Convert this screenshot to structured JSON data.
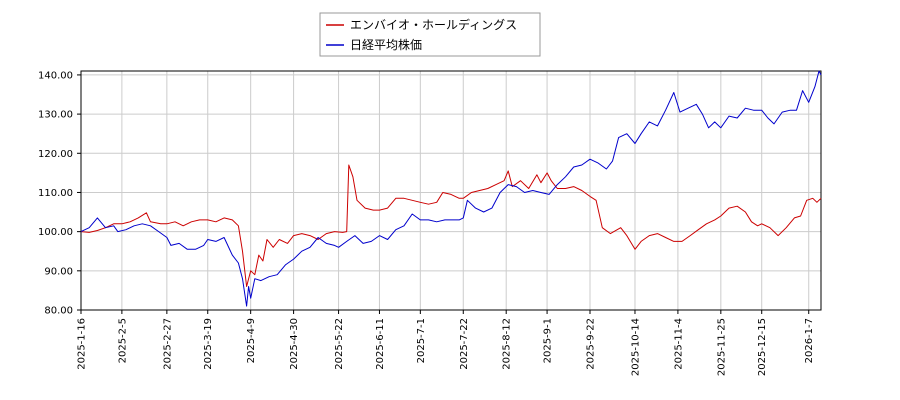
{
  "chart_data": {
    "type": "line",
    "title": "",
    "xlabel": "",
    "ylabel": "",
    "ylim": [
      80,
      141
    ],
    "xlim": [
      "2025-01-16",
      "2026-01-13"
    ],
    "y_ticks": [
      "80.00",
      "90.00",
      "100.00",
      "110.00",
      "120.00",
      "130.00",
      "140.00"
    ],
    "x_ticks": [
      "2025-1-16",
      "2025-2-5",
      "2025-2-27",
      "2025-3-19",
      "2025-4-9",
      "2025-4-30",
      "2025-5-22",
      "2025-6-11",
      "2025-7-1",
      "2025-7-22",
      "2025-8-12",
      "2025-9-1",
      "2025-9-22",
      "2025-10-14",
      "2025-11-4",
      "2025-11-25",
      "2025-12-15",
      "2026-1-7"
    ],
    "x_tick_dates": [
      "2025-01-16",
      "2025-02-05",
      "2025-02-27",
      "2025-03-19",
      "2025-04-09",
      "2025-04-30",
      "2025-05-22",
      "2025-06-11",
      "2025-07-01",
      "2025-07-22",
      "2025-08-12",
      "2025-09-01",
      "2025-09-22",
      "2025-10-14",
      "2025-11-04",
      "2025-11-25",
      "2025-12-15",
      "2026-01-07"
    ],
    "grid": true,
    "legend_position": "top-center",
    "series": [
      {
        "name": "エンバイオ・ホールディングス",
        "color": "#cc0000",
        "points": [
          [
            "2025-01-16",
            100.0
          ],
          [
            "2025-01-20",
            99.8
          ],
          [
            "2025-01-24",
            100.3
          ],
          [
            "2025-01-28",
            101.0
          ],
          [
            "2025-02-01",
            102.0
          ],
          [
            "2025-02-05",
            102.0
          ],
          [
            "2025-02-09",
            102.5
          ],
          [
            "2025-02-13",
            103.5
          ],
          [
            "2025-02-17",
            104.8
          ],
          [
            "2025-02-19",
            102.5
          ],
          [
            "2025-02-24",
            102.0
          ],
          [
            "2025-02-27",
            102.0
          ],
          [
            "2025-03-03",
            102.5
          ],
          [
            "2025-03-07",
            101.5
          ],
          [
            "2025-03-11",
            102.5
          ],
          [
            "2025-03-15",
            103.0
          ],
          [
            "2025-03-19",
            103.0
          ],
          [
            "2025-03-23",
            102.5
          ],
          [
            "2025-03-27",
            103.5
          ],
          [
            "2025-03-31",
            103.0
          ],
          [
            "2025-04-03",
            101.5
          ],
          [
            "2025-04-05",
            95.0
          ],
          [
            "2025-04-07",
            86.0
          ],
          [
            "2025-04-09",
            90.0
          ],
          [
            "2025-04-11",
            89.0
          ],
          [
            "2025-04-13",
            94.0
          ],
          [
            "2025-04-15",
            92.5
          ],
          [
            "2025-04-17",
            98.0
          ],
          [
            "2025-04-20",
            96.0
          ],
          [
            "2025-04-23",
            98.0
          ],
          [
            "2025-04-27",
            97.0
          ],
          [
            "2025-04-30",
            99.0
          ],
          [
            "2025-05-04",
            99.5
          ],
          [
            "2025-05-08",
            99.0
          ],
          [
            "2025-05-12",
            98.0
          ],
          [
            "2025-05-16",
            99.5
          ],
          [
            "2025-05-20",
            100.0
          ],
          [
            "2025-05-24",
            99.8
          ],
          [
            "2025-05-26",
            100.0
          ],
          [
            "2025-05-27",
            117.0
          ],
          [
            "2025-05-29",
            114.0
          ],
          [
            "2025-05-31",
            108.0
          ],
          [
            "2025-06-04",
            106.0
          ],
          [
            "2025-06-08",
            105.5
          ],
          [
            "2025-06-11",
            105.5
          ],
          [
            "2025-06-15",
            106.0
          ],
          [
            "2025-06-19",
            108.5
          ],
          [
            "2025-06-23",
            108.5
          ],
          [
            "2025-06-27",
            108.0
          ],
          [
            "2025-07-01",
            107.5
          ],
          [
            "2025-07-05",
            107.0
          ],
          [
            "2025-07-09",
            107.5
          ],
          [
            "2025-07-12",
            110.0
          ],
          [
            "2025-07-16",
            109.5
          ],
          [
            "2025-07-20",
            108.5
          ],
          [
            "2025-07-22",
            108.5
          ],
          [
            "2025-07-26",
            110.0
          ],
          [
            "2025-07-30",
            110.5
          ],
          [
            "2025-08-03",
            111.0
          ],
          [
            "2025-08-07",
            112.0
          ],
          [
            "2025-08-11",
            113.0
          ],
          [
            "2025-08-13",
            115.5
          ],
          [
            "2025-08-15",
            111.5
          ],
          [
            "2025-08-19",
            113.0
          ],
          [
            "2025-08-23",
            111.0
          ],
          [
            "2025-08-27",
            114.5
          ],
          [
            "2025-08-29",
            112.5
          ],
          [
            "2025-09-01",
            115.0
          ],
          [
            "2025-09-03",
            113.0
          ],
          [
            "2025-09-06",
            111.0
          ],
          [
            "2025-09-10",
            111.0
          ],
          [
            "2025-09-14",
            111.5
          ],
          [
            "2025-09-18",
            110.5
          ],
          [
            "2025-09-22",
            109.0
          ],
          [
            "2025-09-25",
            108.0
          ],
          [
            "2025-09-28",
            101.0
          ],
          [
            "2025-10-02",
            99.5
          ],
          [
            "2025-10-07",
            101.0
          ],
          [
            "2025-10-10",
            99.0
          ],
          [
            "2025-10-14",
            95.5
          ],
          [
            "2025-10-17",
            97.5
          ],
          [
            "2025-10-21",
            99.0
          ],
          [
            "2025-10-25",
            99.5
          ],
          [
            "2025-10-29",
            98.5
          ],
          [
            "2025-11-02",
            97.5
          ],
          [
            "2025-11-06",
            97.5
          ],
          [
            "2025-11-10",
            99.0
          ],
          [
            "2025-11-14",
            100.5
          ],
          [
            "2025-11-18",
            102.0
          ],
          [
            "2025-11-22",
            103.0
          ],
          [
            "2025-11-25",
            104.0
          ],
          [
            "2025-11-29",
            106.0
          ],
          [
            "2025-12-03",
            106.5
          ],
          [
            "2025-12-07",
            105.0
          ],
          [
            "2025-12-10",
            102.5
          ],
          [
            "2025-12-13",
            101.5
          ],
          [
            "2025-12-15",
            102.0
          ],
          [
            "2025-12-19",
            101.0
          ],
          [
            "2025-12-23",
            99.0
          ],
          [
            "2025-12-27",
            101.0
          ],
          [
            "2025-12-31",
            103.5
          ],
          [
            "2026-01-03",
            104.0
          ],
          [
            "2026-01-06",
            108.0
          ],
          [
            "2026-01-09",
            108.5
          ],
          [
            "2026-01-11",
            107.5
          ],
          [
            "2026-01-13",
            108.5
          ]
        ]
      },
      {
        "name": "日経平均株価",
        "color": "#0000cc",
        "points": [
          [
            "2025-01-16",
            100.0
          ],
          [
            "2025-01-20",
            101.0
          ],
          [
            "2025-01-24",
            103.5
          ],
          [
            "2025-01-28",
            101.0
          ],
          [
            "2025-02-01",
            101.5
          ],
          [
            "2025-02-03",
            100.0
          ],
          [
            "2025-02-07",
            100.5
          ],
          [
            "2025-02-11",
            101.5
          ],
          [
            "2025-02-15",
            102.0
          ],
          [
            "2025-02-19",
            101.5
          ],
          [
            "2025-02-23",
            100.0
          ],
          [
            "2025-02-27",
            98.5
          ],
          [
            "2025-03-01",
            96.5
          ],
          [
            "2025-03-05",
            97.0
          ],
          [
            "2025-03-09",
            95.5
          ],
          [
            "2025-03-13",
            95.5
          ],
          [
            "2025-03-17",
            96.5
          ],
          [
            "2025-03-19",
            98.0
          ],
          [
            "2025-03-23",
            97.5
          ],
          [
            "2025-03-27",
            98.5
          ],
          [
            "2025-03-31",
            94.0
          ],
          [
            "2025-04-03",
            92.0
          ],
          [
            "2025-04-05",
            88.0
          ],
          [
            "2025-04-07",
            81.0
          ],
          [
            "2025-04-08",
            86.0
          ],
          [
            "2025-04-09",
            83.0
          ],
          [
            "2025-04-11",
            88.0
          ],
          [
            "2025-04-14",
            87.5
          ],
          [
            "2025-04-18",
            88.5
          ],
          [
            "2025-04-22",
            89.0
          ],
          [
            "2025-04-26",
            91.5
          ],
          [
            "2025-04-30",
            93.0
          ],
          [
            "2025-05-04",
            95.0
          ],
          [
            "2025-05-08",
            96.0
          ],
          [
            "2025-05-12",
            98.5
          ],
          [
            "2025-05-16",
            97.0
          ],
          [
            "2025-05-20",
            96.5
          ],
          [
            "2025-05-22",
            96.0
          ],
          [
            "2025-05-26",
            97.5
          ],
          [
            "2025-05-30",
            99.0
          ],
          [
            "2025-06-03",
            97.0
          ],
          [
            "2025-06-07",
            97.5
          ],
          [
            "2025-06-11",
            99.0
          ],
          [
            "2025-06-15",
            98.0
          ],
          [
            "2025-06-19",
            100.5
          ],
          [
            "2025-06-23",
            101.5
          ],
          [
            "2025-06-27",
            104.5
          ],
          [
            "2025-07-01",
            103.0
          ],
          [
            "2025-07-05",
            103.0
          ],
          [
            "2025-07-09",
            102.5
          ],
          [
            "2025-07-13",
            103.0
          ],
          [
            "2025-07-17",
            103.0
          ],
          [
            "2025-07-20",
            103.0
          ],
          [
            "2025-07-22",
            103.5
          ],
          [
            "2025-07-24",
            108.0
          ],
          [
            "2025-07-28",
            106.0
          ],
          [
            "2025-08-01",
            105.0
          ],
          [
            "2025-08-05",
            106.0
          ],
          [
            "2025-08-09",
            110.0
          ],
          [
            "2025-08-13",
            112.0
          ],
          [
            "2025-08-17",
            111.5
          ],
          [
            "2025-08-21",
            110.0
          ],
          [
            "2025-08-25",
            110.5
          ],
          [
            "2025-08-29",
            110.0
          ],
          [
            "2025-09-02",
            109.5
          ],
          [
            "2025-09-06",
            112.0
          ],
          [
            "2025-09-10",
            114.0
          ],
          [
            "2025-09-14",
            116.5
          ],
          [
            "2025-09-18",
            117.0
          ],
          [
            "2025-09-22",
            118.5
          ],
          [
            "2025-09-26",
            117.5
          ],
          [
            "2025-09-30",
            116.0
          ],
          [
            "2025-10-03",
            118.0
          ],
          [
            "2025-10-06",
            124.0
          ],
          [
            "2025-10-10",
            125.0
          ],
          [
            "2025-10-14",
            122.5
          ],
          [
            "2025-10-17",
            125.0
          ],
          [
            "2025-10-21",
            128.0
          ],
          [
            "2025-10-25",
            127.0
          ],
          [
            "2025-10-29",
            131.0
          ],
          [
            "2025-11-02",
            135.5
          ],
          [
            "2025-11-05",
            130.5
          ],
          [
            "2025-11-09",
            131.5
          ],
          [
            "2025-11-13",
            132.5
          ],
          [
            "2025-11-16",
            130.0
          ],
          [
            "2025-11-19",
            126.5
          ],
          [
            "2025-11-22",
            128.0
          ],
          [
            "2025-11-25",
            126.5
          ],
          [
            "2025-11-29",
            129.5
          ],
          [
            "2025-12-03",
            129.0
          ],
          [
            "2025-12-07",
            131.5
          ],
          [
            "2025-12-11",
            131.0
          ],
          [
            "2025-12-15",
            131.0
          ],
          [
            "2025-12-18",
            129.0
          ],
          [
            "2025-12-21",
            127.5
          ],
          [
            "2025-12-25",
            130.5
          ],
          [
            "2025-12-29",
            131.0
          ],
          [
            "2026-01-01",
            131.0
          ],
          [
            "2026-01-04",
            136.0
          ],
          [
            "2026-01-07",
            133.0
          ],
          [
            "2026-01-10",
            137.0
          ],
          [
            "2026-01-12",
            141.0
          ],
          [
            "2026-01-13",
            140.0
          ]
        ]
      }
    ]
  }
}
